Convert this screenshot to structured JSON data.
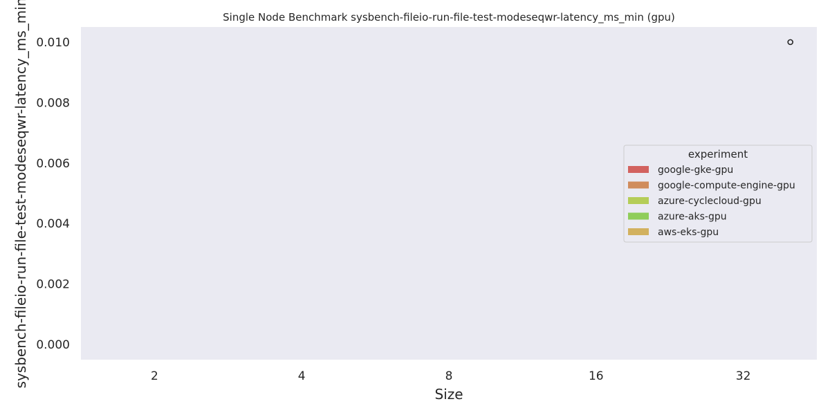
{
  "chart_data": {
    "type": "bar",
    "title": "Single Node Benchmark sysbench-fileio-run-file-test-modeseqwr-latency_ms_min (gpu)",
    "xlabel": "Size",
    "ylabel": "sysbench-fileio-run-file-test-modeseqwr-latency_ms_min",
    "categories": [
      "2",
      "4",
      "8",
      "16",
      "32"
    ],
    "ylim": [
      -0.0005,
      0.0105
    ],
    "yticks": [
      "0.000",
      "0.002",
      "0.004",
      "0.006",
      "0.008",
      "0.010"
    ],
    "ytick_values": [
      0,
      0.002,
      0.004,
      0.006,
      0.008,
      0.01
    ],
    "grid": false,
    "legend": {
      "title": "experiment",
      "placement": "center-right",
      "entries": [
        {
          "name": "google-gke-gpu",
          "color": "#d2625f"
        },
        {
          "name": "google-compute-engine-gpu",
          "color": "#d08c5c"
        },
        {
          "name": "azure-cyclecloud-gpu",
          "color": "#b5cd58"
        },
        {
          "name": "azure-aks-gpu",
          "color": "#8fcd5a"
        },
        {
          "name": "aws-eks-gpu",
          "color": "#d2b15f"
        }
      ]
    },
    "series": [
      {
        "name": "google-gke-gpu",
        "values": [
          0,
          0,
          0,
          0,
          0
        ]
      },
      {
        "name": "google-compute-engine-gpu",
        "values": [
          0,
          0,
          0,
          0,
          0
        ]
      },
      {
        "name": "azure-cyclecloud-gpu",
        "values": [
          0,
          0,
          0,
          0,
          0
        ]
      },
      {
        "name": "azure-aks-gpu",
        "values": [
          0,
          0,
          0,
          0,
          0
        ]
      },
      {
        "name": "aws-eks-gpu",
        "values": [
          0,
          0,
          0,
          0,
          0
        ]
      }
    ],
    "outliers": [
      {
        "category": "32",
        "series": "aws-eks-gpu",
        "value": 0.01
      }
    ],
    "colors": {
      "plot_background": "#eaeaf2"
    }
  }
}
